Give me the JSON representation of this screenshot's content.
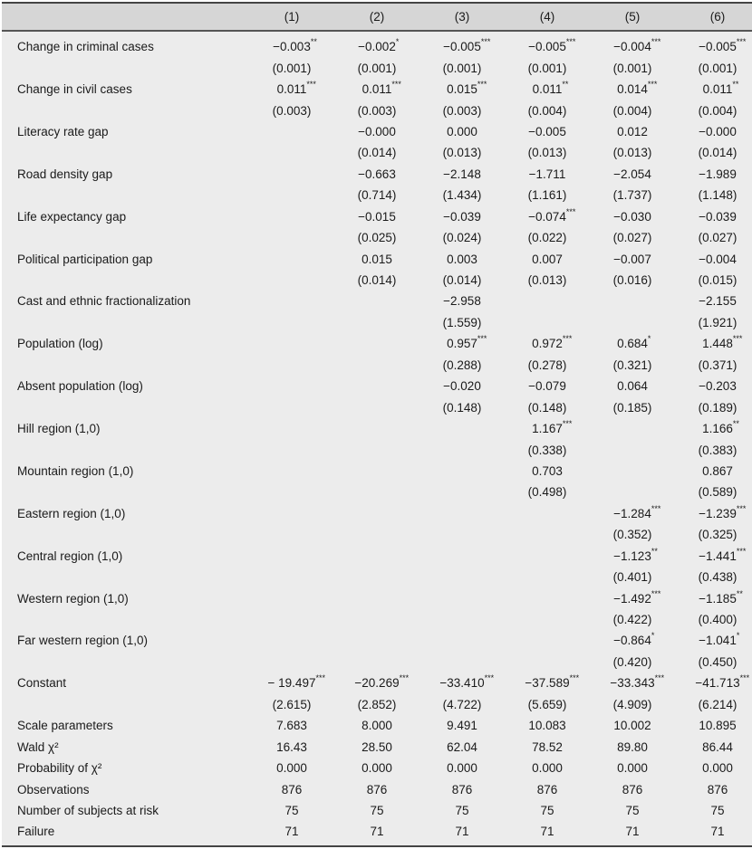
{
  "columns": [
    "(1)",
    "(2)",
    "(3)",
    "(4)",
    "(5)",
    "(6)"
  ],
  "variables": [
    {
      "label": "Change in criminal cases",
      "coef": [
        "−0.003",
        "−0.002",
        "−0.005",
        "−0.005",
        "−0.004",
        "−0.005"
      ],
      "stars": [
        "**",
        "*",
        "***",
        "***",
        "***",
        "***"
      ],
      "se": [
        "(0.001)",
        "(0.001)",
        "(0.001)",
        "(0.001)",
        "(0.001)",
        "(0.001)"
      ]
    },
    {
      "label": "Change in civil cases",
      "coef": [
        "0.011",
        "0.011",
        "0.015",
        "0.011",
        "0.014",
        "0.011"
      ],
      "stars": [
        "***",
        "***",
        "***",
        "**",
        "***",
        "**"
      ],
      "se": [
        "(0.003)",
        "(0.003)",
        "(0.003)",
        "(0.004)",
        "(0.004)",
        "(0.004)"
      ]
    },
    {
      "label": "Literacy rate gap",
      "coef": [
        "",
        "−0.000",
        "0.000",
        "−0.005",
        "0.012",
        "−0.000"
      ],
      "stars": [
        "",
        "",
        "",
        "",
        "",
        ""
      ],
      "se": [
        "",
        "(0.014)",
        "(0.013)",
        "(0.013)",
        "(0.013)",
        "(0.014)"
      ]
    },
    {
      "label": "Road density gap",
      "coef": [
        "",
        "−0.663",
        "−2.148",
        "−1.711",
        "−2.054",
        "−1.989"
      ],
      "stars": [
        "",
        "",
        "",
        "",
        "",
        ""
      ],
      "se": [
        "",
        "(0.714)",
        "(1.434)",
        "(1.161)",
        "(1.737)",
        "(1.148)"
      ]
    },
    {
      "label": "Life expectancy gap",
      "coef": [
        "",
        "−0.015",
        "−0.039",
        "−0.074",
        "−0.030",
        "−0.039"
      ],
      "stars": [
        "",
        "",
        "",
        "***",
        "",
        ""
      ],
      "se": [
        "",
        "(0.025)",
        "(0.024)",
        "(0.022)",
        "(0.027)",
        "(0.027)"
      ]
    },
    {
      "label": "Political participation gap",
      "coef": [
        "",
        "0.015",
        "0.003",
        "0.007",
        "−0.007",
        "−0.004"
      ],
      "stars": [
        "",
        "",
        "",
        "",
        "",
        ""
      ],
      "se": [
        "",
        "(0.014)",
        "(0.014)",
        "(0.013)",
        "(0.016)",
        "(0.015)"
      ]
    },
    {
      "label": "Cast and ethnic fractionalization",
      "coef": [
        "",
        "",
        "−2.958",
        "",
        "",
        "−2.155"
      ],
      "stars": [
        "",
        "",
        "",
        "",
        "",
        ""
      ],
      "se": [
        "",
        "",
        "(1.559)",
        "",
        "",
        "(1.921)"
      ]
    },
    {
      "label": "Population (log)",
      "coef": [
        "",
        "",
        "0.957",
        "0.972",
        "0.684",
        "1.448"
      ],
      "stars": [
        "",
        "",
        "***",
        "***",
        "*",
        "***"
      ],
      "se": [
        "",
        "",
        "(0.288)",
        "(0.278)",
        "(0.321)",
        "(0.371)"
      ]
    },
    {
      "label": "Absent population (log)",
      "coef": [
        "",
        "",
        "−0.020",
        "−0.079",
        "0.064",
        "−0.203"
      ],
      "stars": [
        "",
        "",
        "",
        "",
        "",
        ""
      ],
      "se": [
        "",
        "",
        "(0.148)",
        "(0.148)",
        "(0.185)",
        "(0.189)"
      ]
    },
    {
      "label": "Hill region (1,0)",
      "coef": [
        "",
        "",
        "",
        "1.167",
        "",
        "1.166"
      ],
      "stars": [
        "",
        "",
        "",
        "***",
        "",
        "**"
      ],
      "se": [
        "",
        "",
        "",
        "(0.338)",
        "",
        "(0.383)"
      ]
    },
    {
      "label": "Mountain region (1,0)",
      "coef": [
        "",
        "",
        "",
        "0.703",
        "",
        "0.867"
      ],
      "stars": [
        "",
        "",
        "",
        "",
        "",
        ""
      ],
      "se": [
        "",
        "",
        "",
        "(0.498)",
        "",
        "(0.589)"
      ]
    },
    {
      "label": "Eastern region (1,0)",
      "coef": [
        "",
        "",
        "",
        "",
        "−1.284",
        "−1.239"
      ],
      "stars": [
        "",
        "",
        "",
        "",
        "***",
        "***"
      ],
      "se": [
        "",
        "",
        "",
        "",
        "(0.352)",
        "(0.325)"
      ]
    },
    {
      "label": "Central region (1,0)",
      "coef": [
        "",
        "",
        "",
        "",
        "−1.123",
        "−1.441"
      ],
      "stars": [
        "",
        "",
        "",
        "",
        "**",
        "***"
      ],
      "se": [
        "",
        "",
        "",
        "",
        "(0.401)",
        "(0.438)"
      ]
    },
    {
      "label": "Western region (1,0)",
      "coef": [
        "",
        "",
        "",
        "",
        "−1.492",
        "−1.185"
      ],
      "stars": [
        "",
        "",
        "",
        "",
        "***",
        "**"
      ],
      "se": [
        "",
        "",
        "",
        "",
        "(0.422)",
        "(0.400)"
      ]
    },
    {
      "label": "Far western region (1,0)",
      "coef": [
        "",
        "",
        "",
        "",
        "−0.864",
        "−1.041"
      ],
      "stars": [
        "",
        "",
        "",
        "",
        "*",
        "*"
      ],
      "se": [
        "",
        "",
        "",
        "",
        "(0.420)",
        "(0.450)"
      ]
    },
    {
      "label": "Constant",
      "coef": [
        "− 19.497",
        "−20.269",
        "−33.410",
        "−37.589",
        "−33.343",
        "−41.713"
      ],
      "stars": [
        "***",
        "***",
        "***",
        "***",
        "***",
        "***"
      ],
      "se": [
        "(2.615)",
        "(2.852)",
        "(4.722)",
        "(5.659)",
        "(4.909)",
        "(6.214)"
      ]
    }
  ],
  "stats": [
    {
      "label": "Scale parameters",
      "values": [
        "7.683",
        "8.000",
        "9.491",
        "10.083",
        "10.002",
        "10.895"
      ]
    },
    {
      "label": "Wald χ²",
      "values": [
        "16.43",
        "28.50",
        "62.04",
        "78.52",
        "89.80",
        "86.44"
      ]
    },
    {
      "label": "Probability of χ²",
      "values": [
        "0.000",
        "0.000",
        "0.000",
        "0.000",
        "0.000",
        "0.000"
      ]
    },
    {
      "label": "Observations",
      "values": [
        "876",
        "876",
        "876",
        "876",
        "876",
        "876"
      ]
    },
    {
      "label": "Number of subjects at risk",
      "values": [
        "75",
        "75",
        "75",
        "75",
        "75",
        "75"
      ]
    },
    {
      "label": "Failure",
      "values": [
        "71",
        "71",
        "71",
        "71",
        "71",
        "71"
      ]
    }
  ]
}
